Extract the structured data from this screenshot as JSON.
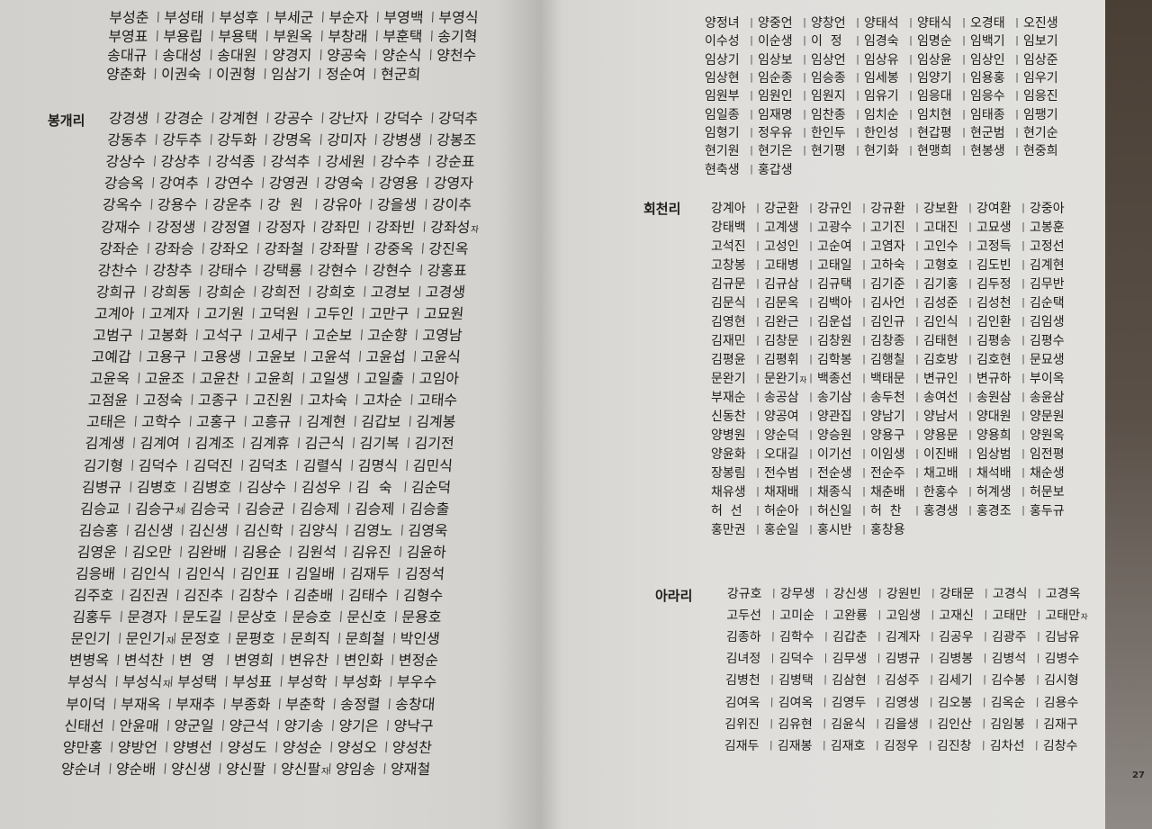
{
  "left_page": {
    "continued_rows": [
      [
        "부성춘",
        "부성태",
        "부성후",
        "부세군",
        "부순자",
        "부영백",
        "부영식"
      ],
      [
        "부영표",
        "부용립",
        "부용택",
        "부원옥",
        "부창래",
        "부훈택",
        "송기혁"
      ],
      [
        "송대규",
        "송대성",
        "송대원",
        "양경지",
        "양공숙",
        "양순식",
        "양천수"
      ],
      [
        "양춘화",
        "이권숙",
        "이권형",
        "임삼기",
        "정순여",
        "현군희"
      ]
    ],
    "sections": [
      {
        "village": "봉개리",
        "rows": [
          [
            "강경생",
            "강경순",
            "강계현",
            "강공수",
            "강난자",
            "강덕수",
            "강덕추"
          ],
          [
            "강동추",
            "강두추",
            "강두화",
            "강명옥",
            "강미자",
            "강병생",
            "강봉조"
          ],
          [
            "강상수",
            "강상추",
            "강석종",
            "강석추",
            "강세원",
            "강수추",
            "강순표"
          ],
          [
            "강승옥",
            "강여추",
            "강연수",
            "강영권",
            "강영숙",
            "강영용",
            "강영자"
          ],
          [
            "강옥수",
            "강용수",
            "강운추",
            "강  원",
            "강유아",
            "강을생",
            "강이추"
          ],
          [
            "강재수",
            "강정생",
            "강정열",
            "강정자",
            "강좌민",
            "강좌빈",
            {
              "name": "강좌성",
              "suffix": "자"
            }
          ],
          [
            "강좌순",
            "강좌승",
            "강좌오",
            "강좌철",
            "강좌팔",
            "강중옥",
            "강진옥"
          ],
          [
            "강찬수",
            "강창추",
            "강태수",
            "강택룡",
            "강현수",
            "강현수",
            "강홍표"
          ],
          [
            "강희규",
            "강희동",
            "강희순",
            "강희전",
            "강희호",
            "고경보",
            "고경생"
          ],
          [
            "고계아",
            "고계자",
            "고기원",
            "고덕원",
            "고두인",
            "고만구",
            "고묘원"
          ],
          [
            "고범구",
            "고봉화",
            "고석구",
            "고세구",
            "고순보",
            "고순향",
            "고영남"
          ],
          [
            "고예갑",
            "고용구",
            "고용생",
            "고윤보",
            "고윤석",
            "고윤섭",
            "고윤식"
          ],
          [
            "고윤옥",
            "고윤조",
            "고윤찬",
            "고윤희",
            "고일생",
            "고일출",
            "고임아"
          ],
          [
            "고점윤",
            "고정숙",
            "고종구",
            "고진원",
            "고차숙",
            "고차순",
            "고태수"
          ],
          [
            "고태은",
            "고학수",
            "고홍구",
            "고흥규",
            "김계현",
            "김갑보",
            "김계봉"
          ],
          [
            "김계생",
            "김계여",
            "김계조",
            "김계휴",
            "김근식",
            "김기복",
            "김기전"
          ],
          [
            "김기형",
            "김덕수",
            "김덕진",
            "김덕초",
            "김렬식",
            "김명식",
            "김민식"
          ],
          [
            "김병규",
            "김병호",
            "김병호",
            "김상수",
            "김성우",
            "김  숙",
            "김순덕"
          ],
          [
            "김승교",
            {
              "name": "김승구",
              "suffix": "처"
            },
            "김승국",
            "김승균",
            "김승제",
            "김승제",
            "김승출"
          ],
          [
            "김승홍",
            "김신생",
            "김신생",
            "김신학",
            "김양식",
            "김영노",
            "김영욱"
          ],
          [
            "김영운",
            "김오만",
            "김완배",
            "김용순",
            "김원석",
            "김유진",
            "김윤하"
          ],
          [
            "김응배",
            "김인식",
            "김인식",
            "김인표",
            "김일배",
            "김재두",
            "김정석"
          ],
          [
            "김주호",
            "김진권",
            "김진추",
            "김창수",
            "김춘배",
            "김태수",
            "김형수"
          ],
          [
            "김홍두",
            "문경자",
            "문도길",
            "문상호",
            "문승호",
            "문신호",
            "문용호"
          ],
          [
            "문인기",
            {
              "name": "문인기",
              "suffix": "자"
            },
            "문정호",
            "문평호",
            "문희직",
            "문희철",
            "박인생"
          ],
          [
            "변병옥",
            "변석찬",
            "변  영",
            "변영희",
            "변유찬",
            "변인화",
            "변정순"
          ],
          [
            "부성식",
            {
              "name": "부성식",
              "suffix": "자"
            },
            "부성택",
            "부성표",
            "부성학",
            "부성화",
            "부우수"
          ],
          [
            "부이덕",
            "부재옥",
            "부재추",
            "부종화",
            "부춘학",
            "송정렬",
            "송창대"
          ],
          [
            "신태선",
            "안윤매",
            "양군일",
            "양근석",
            "양기송",
            "양기은",
            "양낙구"
          ],
          [
            "양만홍",
            "양방언",
            "양병선",
            "양성도",
            "양성순",
            "양성오",
            "양성찬"
          ],
          [
            "양순녀",
            "양순배",
            "양신생",
            "양신팔",
            {
              "name": "양신팔",
              "suffix": "자"
            },
            "양임송",
            "양재철"
          ]
        ]
      }
    ]
  },
  "right_page": {
    "continued_rows": [
      [
        "양정녀",
        "양중언",
        "양창언",
        "양태석",
        "양태식",
        "오경태",
        "오진생"
      ],
      [
        "이수성",
        "이순생",
        "이  정",
        "임경숙",
        "임명순",
        "임백기",
        "임보기"
      ],
      [
        "임상기",
        "임상보",
        "임상언",
        "임상유",
        "임상윤",
        "임상인",
        "임상준"
      ],
      [
        "임상현",
        "임순종",
        "임승종",
        "임세봉",
        "임양기",
        "임용홍",
        "임우기"
      ],
      [
        "임원부",
        "임원인",
        "임원지",
        "임유기",
        "임응대",
        "임응수",
        "임응진"
      ],
      [
        "임일종",
        "임재명",
        "임찬종",
        "임치순",
        "임치현",
        "임태종",
        "임팽기"
      ],
      [
        "임형기",
        "정우유",
        "한인두",
        "한인성",
        "현갑평",
        "현군범",
        "현기순"
      ],
      [
        "현기원",
        "현기은",
        "현기평",
        "현기화",
        "현맹희",
        "현봉생",
        "현중희"
      ],
      [
        "현축생",
        "홍갑생"
      ]
    ],
    "sections": [
      {
        "village": "회천리",
        "rows": [
          [
            "강계아",
            "강군환",
            "강규인",
            "강규환",
            "강보환",
            "강여환",
            "강중아"
          ],
          [
            "강태백",
            "고계생",
            "고광수",
            "고기진",
            "고대진",
            "고묘생",
            "고봉훈"
          ],
          [
            "고석진",
            "고성인",
            "고순여",
            "고염자",
            "고인수",
            "고정득",
            "고정선"
          ],
          [
            "고창봉",
            "고태병",
            "고태일",
            "고하숙",
            "고형호",
            "김도빈",
            "김계현"
          ],
          [
            "김규문",
            "김규삼",
            "김규택",
            "김기준",
            "김기홍",
            "김두정",
            "김무반"
          ],
          [
            "김문식",
            "김문옥",
            "김백아",
            "김사언",
            "김성준",
            "김성천",
            "김순택"
          ],
          [
            "김영현",
            "김완근",
            "김운섭",
            "김인규",
            "김인식",
            "김인환",
            "김임생"
          ],
          [
            "김재민",
            "김창문",
            "김창원",
            "김창종",
            "김태현",
            "김평송",
            "김평수"
          ],
          [
            "김평윤",
            "김평휘",
            "김학봉",
            "김행칠",
            "김호방",
            "김호현",
            "문묘생"
          ],
          [
            "문완기",
            {
              "name": "문완기",
              "suffix": "자"
            },
            "백종선",
            "백태문",
            "변규인",
            "변규하",
            "부이옥"
          ],
          [
            "부재순",
            "송공삼",
            "송기삼",
            "송두천",
            "송여선",
            "송원삼",
            "송윤삼"
          ],
          [
            "신동찬",
            "양공여",
            "양관집",
            "양남기",
            "양남서",
            "양대원",
            "양문원"
          ],
          [
            "양병원",
            "양순덕",
            "양승원",
            "양용구",
            "양용문",
            "양용희",
            "양원옥"
          ],
          [
            "양윤화",
            "오대길",
            "이기선",
            "이임생",
            "이진배",
            "임상범",
            "임전평"
          ],
          [
            "장봉림",
            "전수범",
            "전순생",
            "전순주",
            "채고배",
            "채석배",
            "채순생"
          ],
          [
            "채유생",
            "채재배",
            "채종식",
            "채춘배",
            "한홍수",
            "허계생",
            "허문보"
          ],
          [
            "허  선",
            "허순아",
            "허신일",
            "허  찬",
            "홍경생",
            "홍경조",
            "홍두규"
          ],
          [
            "홍만권",
            "홍순일",
            "홍시반",
            "홍창용"
          ]
        ]
      },
      {
        "village": "아라리",
        "rows": [
          [
            "강규호",
            "강무생",
            "강신생",
            "강원빈",
            "강태문",
            "고경식",
            "고경옥"
          ],
          [
            "고두선",
            "고미순",
            "고완룡",
            "고임생",
            "고재신",
            "고태만",
            {
              "name": "고태만",
              "suffix": "자"
            }
          ],
          [
            "김종하",
            "김학수",
            "김갑춘",
            "김계자",
            "김공우",
            "김광주",
            "김남유"
          ],
          [
            "김녀정",
            "김덕수",
            "김무생",
            "김병규",
            "김병봉",
            "김병석",
            "김병수"
          ],
          [
            "김병천",
            "김병택",
            "김삼현",
            "김성주",
            "김세기",
            "김수봉",
            "김시형"
          ],
          [
            "김여옥",
            "김여옥",
            "김영두",
            "김영생",
            "김오봉",
            "김옥순",
            "김용수"
          ],
          [
            "김위진",
            "김유현",
            "김윤식",
            "김을생",
            "김인산",
            "김임봉",
            "김재구"
          ],
          [
            "김재두",
            "김재봉",
            "김재호",
            "김정우",
            "김진창",
            "김차선",
            "김창수"
          ]
        ]
      }
    ],
    "page_number": "27"
  },
  "separator": "|"
}
